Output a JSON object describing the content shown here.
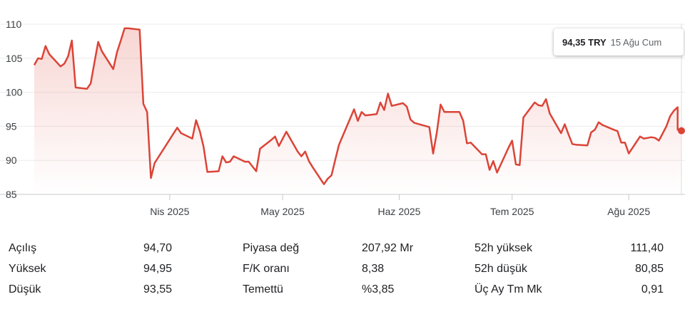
{
  "chart_data": {
    "type": "area",
    "title": "",
    "xlabel": "",
    "ylabel": "",
    "ylim": [
      85,
      110
    ],
    "y_ticks": [
      110,
      105,
      100,
      95,
      90,
      85
    ],
    "x_ticks": [
      {
        "label": "Nis 2025",
        "date": "2025-04-01"
      },
      {
        "label": "May 2025",
        "date": "2025-05-01"
      },
      {
        "label": "Haz 2025",
        "date": "2025-06-01"
      },
      {
        "label": "Tem 2025",
        "date": "2025-07-01"
      },
      {
        "label": "Ağu 2025",
        "date": "2025-08-01"
      }
    ],
    "x_range": [
      "2025-02-24",
      "2025-08-15"
    ],
    "line_color": "#db4437",
    "grid": "horizontal",
    "series": [
      {
        "values": [
          [
            "2025-02-24",
            104.0
          ],
          [
            "2025-02-25",
            105.0
          ],
          [
            "2025-02-26",
            104.9
          ],
          [
            "2025-02-27",
            106.8
          ],
          [
            "2025-02-28",
            105.6
          ],
          [
            "2025-03-03",
            103.8
          ],
          [
            "2025-03-04",
            104.2
          ],
          [
            "2025-03-05",
            105.3
          ],
          [
            "2025-03-06",
            107.6
          ],
          [
            "2025-03-07",
            100.7
          ],
          [
            "2025-03-10",
            100.5
          ],
          [
            "2025-03-11",
            101.3
          ],
          [
            "2025-03-12",
            104.4
          ],
          [
            "2025-03-13",
            107.4
          ],
          [
            "2025-03-14",
            106.0
          ],
          [
            "2025-03-17",
            103.4
          ],
          [
            "2025-03-18",
            105.9
          ],
          [
            "2025-03-19",
            107.6
          ],
          [
            "2025-03-20",
            109.4
          ],
          [
            "2025-03-21",
            109.4
          ],
          [
            "2025-03-24",
            109.2
          ],
          [
            "2025-03-25",
            98.3
          ],
          [
            "2025-03-26",
            97.1
          ],
          [
            "2025-03-27",
            87.4
          ],
          [
            "2025-03-28",
            89.6
          ],
          [
            "2025-04-03",
            94.8
          ],
          [
            "2025-04-04",
            94.0
          ],
          [
            "2025-04-07",
            93.2
          ],
          [
            "2025-04-08",
            95.9
          ],
          [
            "2025-04-09",
            94.3
          ],
          [
            "2025-04-10",
            92.0
          ],
          [
            "2025-04-11",
            88.3
          ],
          [
            "2025-04-14",
            88.4
          ],
          [
            "2025-04-15",
            90.6
          ],
          [
            "2025-04-16",
            89.7
          ],
          [
            "2025-04-17",
            89.8
          ],
          [
            "2025-04-18",
            90.6
          ],
          [
            "2025-04-21",
            89.8
          ],
          [
            "2025-04-22",
            89.8
          ],
          [
            "2025-04-24",
            88.4
          ],
          [
            "2025-04-25",
            91.7
          ],
          [
            "2025-04-28",
            93.0
          ],
          [
            "2025-04-29",
            93.5
          ],
          [
            "2025-04-30",
            92.1
          ],
          [
            "2025-05-02",
            94.2
          ],
          [
            "2025-05-05",
            91.3
          ],
          [
            "2025-05-06",
            90.6
          ],
          [
            "2025-05-07",
            91.3
          ],
          [
            "2025-05-08",
            89.9
          ],
          [
            "2025-05-09",
            89.0
          ],
          [
            "2025-05-12",
            86.5
          ],
          [
            "2025-05-13",
            87.3
          ],
          [
            "2025-05-14",
            87.8
          ],
          [
            "2025-05-15",
            90.1
          ],
          [
            "2025-05-16",
            92.3
          ],
          [
            "2025-05-20",
            97.5
          ],
          [
            "2025-05-21",
            95.8
          ],
          [
            "2025-05-22",
            97.1
          ],
          [
            "2025-05-23",
            96.6
          ],
          [
            "2025-05-26",
            96.8
          ],
          [
            "2025-05-27",
            98.5
          ],
          [
            "2025-05-28",
            97.4
          ],
          [
            "2025-05-29",
            99.8
          ],
          [
            "2025-05-30",
            98.0
          ],
          [
            "2025-06-02",
            98.4
          ],
          [
            "2025-06-03",
            97.9
          ],
          [
            "2025-06-04",
            96.0
          ],
          [
            "2025-06-05",
            95.5
          ],
          [
            "2025-06-09",
            94.9
          ],
          [
            "2025-06-10",
            91.0
          ],
          [
            "2025-06-11",
            94.1
          ],
          [
            "2025-06-12",
            98.2
          ],
          [
            "2025-06-13",
            97.1
          ],
          [
            "2025-06-16",
            97.1
          ],
          [
            "2025-06-17",
            97.1
          ],
          [
            "2025-06-18",
            95.8
          ],
          [
            "2025-06-19",
            92.5
          ],
          [
            "2025-06-20",
            92.6
          ],
          [
            "2025-06-23",
            90.9
          ],
          [
            "2025-06-24",
            90.9
          ],
          [
            "2025-06-25",
            88.6
          ],
          [
            "2025-06-26",
            89.9
          ],
          [
            "2025-06-27",
            88.2
          ],
          [
            "2025-06-30",
            91.8
          ],
          [
            "2025-07-01",
            92.9
          ],
          [
            "2025-07-02",
            89.4
          ],
          [
            "2025-07-03",
            89.3
          ],
          [
            "2025-07-04",
            96.3
          ],
          [
            "2025-07-07",
            98.5
          ],
          [
            "2025-07-08",
            98.1
          ],
          [
            "2025-07-09",
            98.0
          ],
          [
            "2025-07-10",
            99.0
          ],
          [
            "2025-07-11",
            96.9
          ],
          [
            "2025-07-14",
            94.0
          ],
          [
            "2025-07-15",
            95.3
          ],
          [
            "2025-07-16",
            93.8
          ],
          [
            "2025-07-17",
            92.4
          ],
          [
            "2025-07-18",
            92.3
          ],
          [
            "2025-07-21",
            92.2
          ],
          [
            "2025-07-22",
            94.1
          ],
          [
            "2025-07-23",
            94.5
          ],
          [
            "2025-07-24",
            95.6
          ],
          [
            "2025-07-25",
            95.2
          ],
          [
            "2025-07-28",
            94.5
          ],
          [
            "2025-07-29",
            94.3
          ],
          [
            "2025-07-30",
            92.6
          ],
          [
            "2025-07-31",
            92.6
          ],
          [
            "2025-08-01",
            91.0
          ],
          [
            "2025-08-04",
            93.5
          ],
          [
            "2025-08-05",
            93.2
          ],
          [
            "2025-08-06",
            93.3
          ],
          [
            "2025-08-07",
            93.4
          ],
          [
            "2025-08-08",
            93.3
          ],
          [
            "2025-08-09",
            92.9
          ],
          [
            "2025-08-11",
            95.0
          ],
          [
            "2025-08-12",
            96.5
          ],
          [
            "2025-08-13",
            97.3
          ],
          [
            "2025-08-14",
            97.8
          ],
          [
            "2025-08-14",
            94.5
          ],
          [
            "2025-08-15",
            94.35
          ]
        ]
      }
    ]
  },
  "tooltip": {
    "price": "94,35 TRY",
    "date": "15 Ağu Cum"
  },
  "stats": [
    [
      {
        "label": "Açılış",
        "value": "94,70"
      },
      {
        "label": "Piyasa değ",
        "value": "207,92 Mr"
      },
      {
        "label": "52h yüksek",
        "value": "111,40"
      }
    ],
    [
      {
        "label": "Yüksek",
        "value": "94,95"
      },
      {
        "label": "F/K oranı",
        "value": "8,38"
      },
      {
        "label": "52h düşük",
        "value": "80,85"
      }
    ],
    [
      {
        "label": "Düşük",
        "value": "93,55"
      },
      {
        "label": "Temettü",
        "value": "%3,85"
      },
      {
        "label": "Üç Ay Tm Mk",
        "value": "0,91"
      }
    ]
  ]
}
